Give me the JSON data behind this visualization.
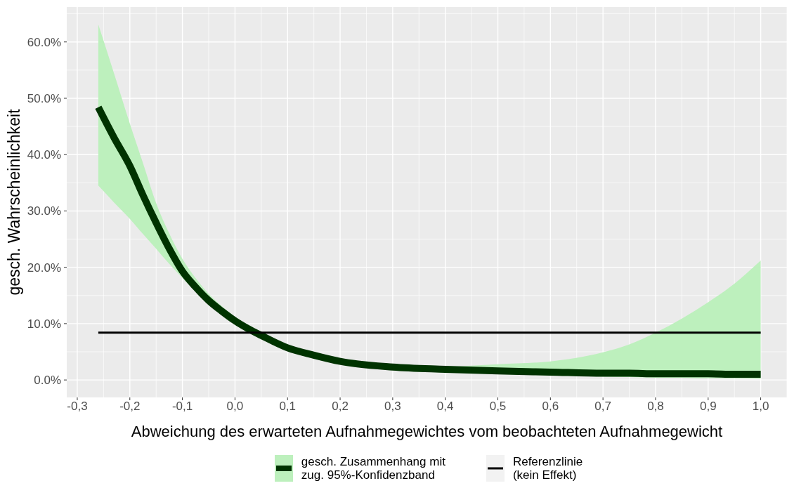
{
  "chart_data": {
    "type": "line",
    "xlabel": "Abweichung des erwarteten Aufnahmegewichtes vom beobachteten Aufnahmegewicht",
    "ylabel": "gesch. Wahrscheinlichkeit",
    "x": [
      -0.26,
      -0.23,
      -0.2,
      -0.175,
      -0.15,
      -0.125,
      -0.1,
      -0.075,
      -0.05,
      -0.025,
      0,
      0.025,
      0.05,
      0.1,
      0.15,
      0.2,
      0.3,
      0.4,
      0.5,
      0.6,
      0.7,
      0.75,
      0.8,
      0.85,
      0.9,
      0.95,
      1.0
    ],
    "series": [
      {
        "name": "gesch. Zusammenhang mit\nzug. 95%-Konfidenzband",
        "color": "#003300",
        "values": [
          48.4,
          43.0,
          38.0,
          32.8,
          27.9,
          23.3,
          19.3,
          16.5,
          14.1,
          12.2,
          10.5,
          9.1,
          7.9,
          5.7,
          4.4,
          3.3,
          2.3,
          1.9,
          1.6,
          1.4,
          1.2,
          1.2,
          1.1,
          1.1,
          1.1,
          1.0,
          1.0
        ],
        "lower": [
          34.5,
          31.5,
          28.6,
          25.9,
          23.3,
          20.6,
          18.1,
          15.7,
          13.6,
          11.7,
          10.0,
          8.7,
          7.5,
          5.4,
          4.1,
          3.0,
          2.0,
          1.5,
          1.1,
          0.8,
          0.6,
          0.5,
          0.4,
          0.4,
          0.3,
          0.3,
          0.2
        ],
        "upper": [
          63.1,
          54.4,
          45.5,
          38.5,
          31.4,
          26.0,
          21.5,
          18.1,
          15.3,
          13.1,
          11.2,
          9.8,
          8.5,
          6.3,
          4.8,
          3.7,
          2.7,
          2.4,
          2.8,
          3.3,
          4.9,
          6.3,
          8.4,
          10.9,
          13.8,
          17.1,
          21.2
        ]
      },
      {
        "name": "Referenzlinie\n(kein Effekt)",
        "color": "#000000",
        "x": [
          -0.26,
          1.0
        ],
        "values": [
          8.4,
          8.4
        ]
      }
    ],
    "xlim": [
      -0.32,
      1.05
    ],
    "xticks": [
      {
        "value": -0.3,
        "label": "-0,3"
      },
      {
        "value": -0.2,
        "label": "-0,2"
      },
      {
        "value": -0.1,
        "label": "-0,1"
      },
      {
        "value": 0,
        "label": "0,0"
      },
      {
        "value": 0.1,
        "label": "0,1"
      },
      {
        "value": 0.2,
        "label": "0,2"
      },
      {
        "value": 0.3,
        "label": "0,3"
      },
      {
        "value": 0.4,
        "label": "0,4"
      },
      {
        "value": 0.5,
        "label": "0,5"
      },
      {
        "value": 0.6,
        "label": "0,6"
      },
      {
        "value": 0.7,
        "label": "0,7"
      },
      {
        "value": 0.8,
        "label": "0,8"
      },
      {
        "value": 0.9,
        "label": "0,9"
      },
      {
        "value": 1.0,
        "label": "1,0"
      }
    ],
    "ylim": [
      -3.1,
      66.2
    ],
    "yticks": [
      {
        "value": 0,
        "label": "0.0%"
      },
      {
        "value": 10,
        "label": "10.0%"
      },
      {
        "value": 20,
        "label": "20.0%"
      },
      {
        "value": 30,
        "label": "30.0%"
      },
      {
        "value": 40,
        "label": "40.0%"
      },
      {
        "value": 50,
        "label": "50.0%"
      },
      {
        "value": 60,
        "label": "60.0%"
      }
    ],
    "grid": true,
    "legend": "bottom"
  }
}
